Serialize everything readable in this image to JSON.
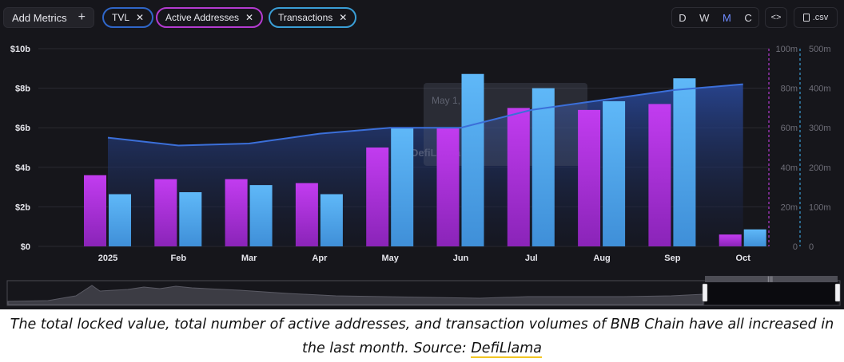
{
  "controls": {
    "add_metrics": "Add Metrics",
    "pills": [
      {
        "label": "TVL",
        "color": "#2f66c8"
      },
      {
        "label": "Active Addresses",
        "color": "#b43bd1"
      },
      {
        "label": "Transactions",
        "color": "#3a9ed6"
      }
    ],
    "periods": [
      "D",
      "W",
      "M",
      "C"
    ],
    "active_period": "M",
    "embed_label": "<>",
    "csv_label": ".csv"
  },
  "chart_data": {
    "type": "bar",
    "categories": [
      "2025",
      "Feb",
      "Mar",
      "Apr",
      "May",
      "Jun",
      "Jul",
      "Aug",
      "Sep",
      "Oct"
    ],
    "series": [
      {
        "name": "TVL",
        "kind": "area",
        "axis": "left",
        "color": "#3b6fd9",
        "values": [
          5.5,
          5.1,
          5.2,
          5.7,
          6.0,
          6.0,
          6.9,
          7.4,
          7.9,
          8.2
        ]
      },
      {
        "name": "Active Addresses",
        "kind": "bar",
        "axis": "middle",
        "color": "#b23ad6",
        "values": [
          36,
          34,
          34,
          32,
          50,
          60,
          70,
          69,
          72,
          6
        ]
      },
      {
        "name": "Transactions",
        "kind": "bar",
        "axis": "right",
        "color": "#55aef2",
        "values": [
          132,
          137,
          155,
          132,
          300,
          436,
          400,
          367,
          425,
          43
        ]
      }
    ],
    "y_left": {
      "ticks": [
        "$0",
        "$2b",
        "$4b",
        "$6b",
        "$8b",
        "$10b"
      ],
      "range": [
        0,
        10
      ]
    },
    "y_middle": {
      "ticks": [
        "0",
        "20m",
        "40m",
        "60m",
        "80m",
        "100m"
      ],
      "range": [
        0,
        100
      ]
    },
    "y_right": {
      "ticks": [
        "0",
        "100m",
        "200m",
        "300m",
        "400m",
        "500m"
      ],
      "range": [
        0,
        500
      ]
    },
    "grid": true,
    "tooltip_ghost": {
      "line1": "May 1, 2025",
      "watermark": "DefiLlama"
    }
  },
  "caption": {
    "text": "The total locked value, total number of active addresses, and transaction volumes of BNB Chain have all increased in the last month. Source: ",
    "source": "DefiLlama"
  }
}
